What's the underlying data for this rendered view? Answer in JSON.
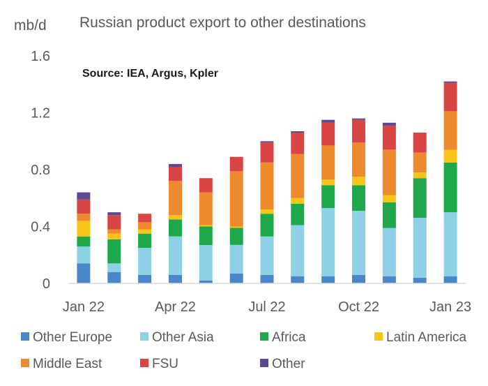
{
  "chart_data": {
    "type": "bar",
    "stacked": true,
    "title": "Russian product export to other destinations",
    "ylabel": "mb/d",
    "source_note": "Source: IEA, Argus, Kpler",
    "ylim": [
      0,
      1.6
    ],
    "yticks": [
      "0",
      "0.4",
      "0.8",
      "1.2",
      "1.6"
    ],
    "grid": false,
    "x": [
      "Jan 22",
      "Feb 22",
      "Mar 22",
      "Apr 22",
      "May 22",
      "Jun 22",
      "Jul 22",
      "Aug 22",
      "Sep 22",
      "Oct 22",
      "Nov 22",
      "Dec 22",
      "Jan 23"
    ],
    "xtick_labels": [
      "Jan 22",
      "Apr 22",
      "Jul 22",
      "Oct 22",
      "Jan 23"
    ],
    "legend_position": "bottom",
    "series": [
      {
        "name": "Other Europe",
        "color": "#4A86C8",
        "values": [
          0.14,
          0.08,
          0.06,
          0.06,
          0.02,
          0.07,
          0.06,
          0.05,
          0.05,
          0.06,
          0.05,
          0.04,
          0.05
        ]
      },
      {
        "name": "Other Asia",
        "color": "#8ED0E5",
        "values": [
          0.12,
          0.06,
          0.19,
          0.27,
          0.25,
          0.2,
          0.27,
          0.36,
          0.48,
          0.45,
          0.34,
          0.42,
          0.45
        ]
      },
      {
        "name": "Africa",
        "color": "#1EA84B",
        "values": [
          0.07,
          0.17,
          0.1,
          0.12,
          0.13,
          0.12,
          0.16,
          0.15,
          0.16,
          0.18,
          0.18,
          0.28,
          0.35
        ]
      },
      {
        "name": "Latin America",
        "color": "#F8C418",
        "values": [
          0.11,
          0.04,
          0.03,
          0.03,
          0.01,
          0.01,
          0.03,
          0.04,
          0.04,
          0.06,
          0.05,
          0.04,
          0.09
        ]
      },
      {
        "name": "Middle East",
        "color": "#EE8A2D",
        "values": [
          0.05,
          0.03,
          0.05,
          0.24,
          0.23,
          0.39,
          0.33,
          0.31,
          0.24,
          0.24,
          0.32,
          0.14,
          0.27
        ]
      },
      {
        "name": "FSU",
        "color": "#D94545",
        "values": [
          0.1,
          0.1,
          0.06,
          0.1,
          0.1,
          0.1,
          0.14,
          0.15,
          0.16,
          0.16,
          0.17,
          0.14,
          0.2
        ]
      },
      {
        "name": "Other",
        "color": "#5B4991",
        "values": [
          0.05,
          0.02,
          0.0,
          0.02,
          0.0,
          0.0,
          0.01,
          0.01,
          0.02,
          0.01,
          0.02,
          0.0,
          0.01
        ]
      }
    ]
  }
}
